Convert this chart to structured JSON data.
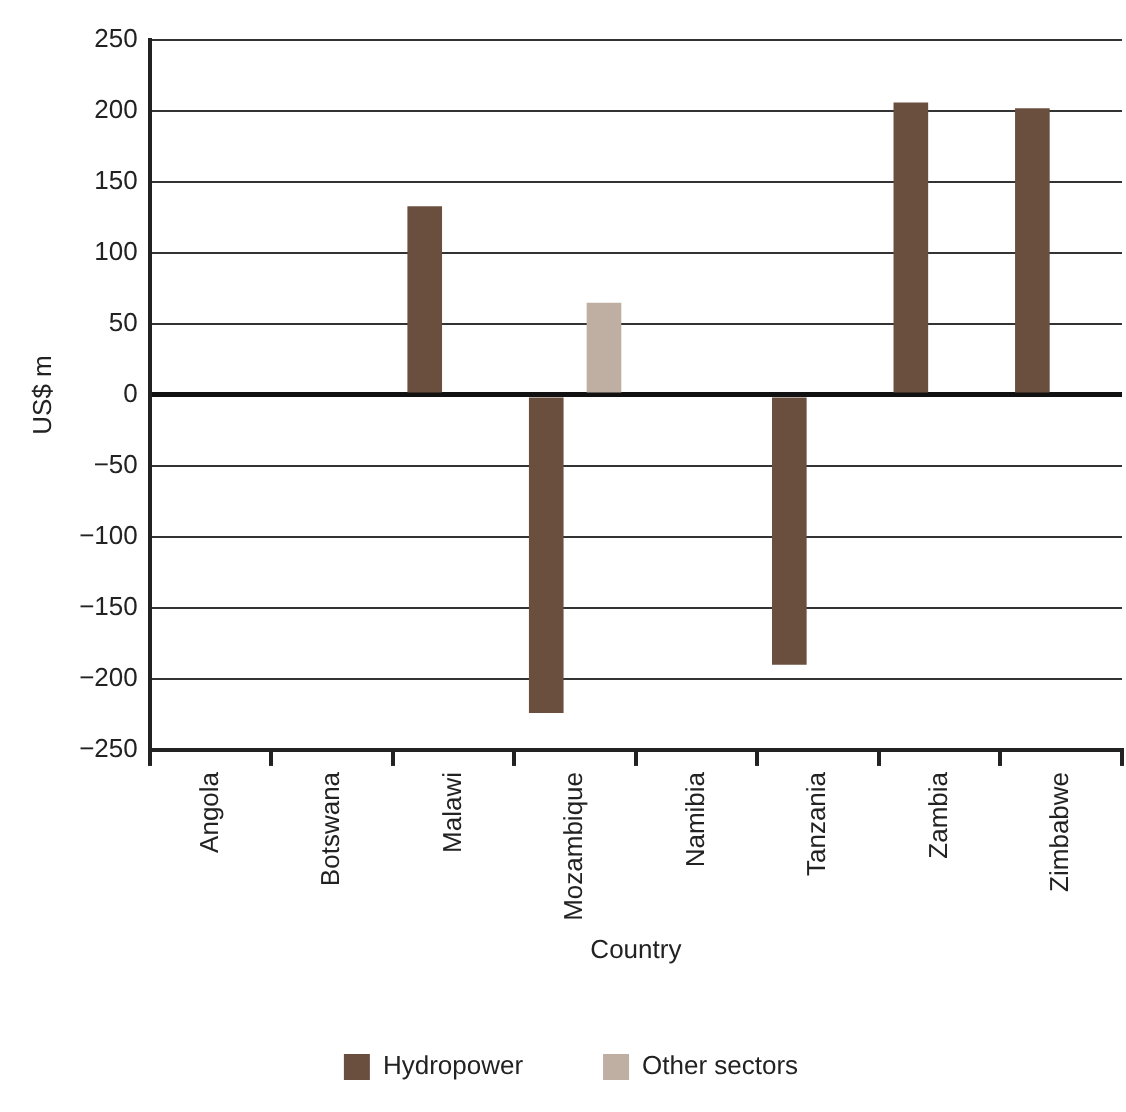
{
  "chart_data": {
    "type": "bar",
    "xlabel": "Country",
    "ylabel": "US$ m",
    "categories": [
      "Angola",
      "Botswana",
      "Malawi",
      "Mozambique",
      "Namibia",
      "Tanzania",
      "Zambia",
      "Zimbabwe"
    ],
    "series": [
      {
        "name": "Hydropower",
        "color": "#6a4f3f",
        "values": [
          null,
          null,
          133,
          -224,
          null,
          -190,
          206,
          202
        ]
      },
      {
        "name": "Other sectors",
        "color": "#bfaea2",
        "values": [
          null,
          null,
          null,
          65,
          null,
          null,
          null,
          null
        ]
      }
    ],
    "ylim": [
      -250,
      250
    ],
    "yticks": [
      {
        "value": -250,
        "label": "−250"
      },
      {
        "value": -200,
        "label": "−200"
      },
      {
        "value": -150,
        "label": "−150"
      },
      {
        "value": -100,
        "label": "−100"
      },
      {
        "value": -50,
        "label": "−50"
      },
      0,
      50,
      100,
      150,
      200,
      250
    ],
    "grid": "y",
    "legend": "bottom"
  }
}
